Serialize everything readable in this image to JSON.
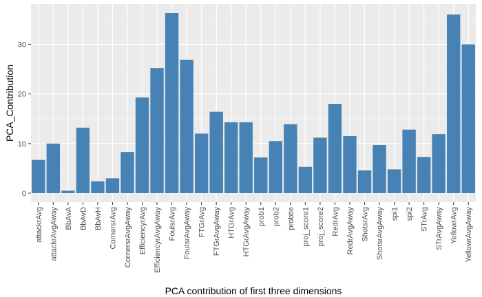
{
  "chart_data": {
    "type": "bar",
    "title": "",
    "xlabel": "PCA contribution of first three dimensions",
    "ylabel": "PCA_Contribution",
    "categories": [
      "attackrAvg",
      "attackrAvgAway",
      "BbAvA",
      "BbAvD",
      "BbAvH",
      "CornersrAvg",
      "CornersrAvgAway",
      "EfficiencyrAvg",
      "EfficiencyrAvgAway",
      "FoulsrAvg",
      "FoulsrAvgAway",
      "FTGrAvg",
      "FTGrAvgAway",
      "HTGrAvg",
      "HTGrAvgAway",
      "prob1",
      "prob2",
      "probtie",
      "proj_score1",
      "proj_score2",
      "RedrAvg",
      "RedrAvgAway",
      "ShotsrAvg",
      "ShotsrAvgAway",
      "spi1",
      "spi2",
      "STrAvg",
      "STrAvgAway",
      "YellowrAvg",
      "YellowrAvgAway"
    ],
    "values": [
      6.7,
      10.0,
      0.5,
      13.2,
      2.4,
      3.0,
      8.3,
      19.3,
      25.2,
      36.3,
      26.9,
      12.0,
      16.4,
      14.3,
      14.3,
      7.2,
      10.5,
      13.9,
      5.3,
      11.2,
      18.0,
      11.5,
      4.6,
      9.7,
      4.8,
      12.8,
      7.3,
      11.9,
      36.0,
      30.0
    ],
    "ylim": [
      -1.8,
      38.1
    ],
    "yticks": [
      0,
      10,
      20,
      30
    ],
    "grid": true,
    "legend": "none",
    "colors": {
      "bar": "#4682b4",
      "panel": "#ebebeb",
      "grid_major": "#ffffff",
      "grid_minor": "#f5f5f5",
      "tick_text": "#4d4d4d",
      "axis_title": "#000000",
      "tick_mark": "#333333"
    }
  }
}
